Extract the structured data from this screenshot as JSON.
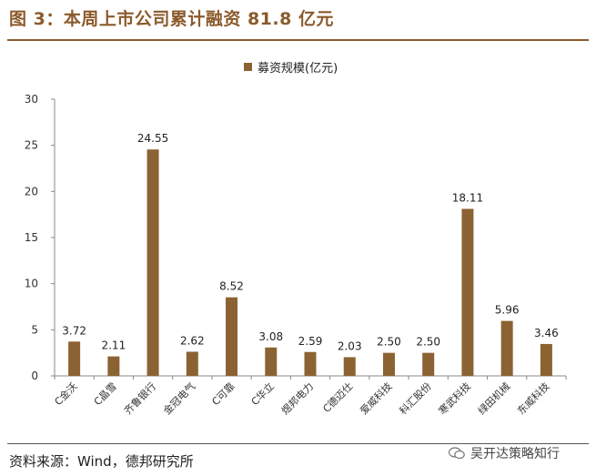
{
  "title": "图 3：本周上市公司累计融资 81.8 亿元",
  "source": "资料来源：Wind，德邦研究所",
  "watermark": "吴开达策略知行",
  "colors": {
    "bar": "#8b6332",
    "title": "#8b5a2b"
  },
  "chart_data": {
    "type": "bar",
    "legend": "募资规模(亿元)",
    "legend_position": "top-center",
    "categories": [
      "C金沃",
      "C晶雪",
      "齐鲁银行",
      "金冠电气",
      "C可靠",
      "C华立",
      "煜邦电力",
      "C德迈仕",
      "爱威科技",
      "科汇股份",
      "寒武科技",
      "绿田机械",
      "东威科技"
    ],
    "values": [
      3.72,
      2.11,
      24.55,
      2.62,
      8.52,
      3.08,
      2.59,
      2.03,
      2.5,
      2.5,
      18.11,
      5.96,
      3.46
    ],
    "value_labels": [
      "3.72",
      "2.11",
      "24.55",
      "2.62",
      "8.52",
      "3.08",
      "2.59",
      "2.03",
      "2.50",
      "2.50",
      "18.11",
      "5.96",
      "3.46"
    ],
    "ylim": [
      0,
      30
    ],
    "yticks": [
      "0",
      "5",
      "10",
      "15",
      "20",
      "25",
      "30"
    ],
    "grid": false
  }
}
